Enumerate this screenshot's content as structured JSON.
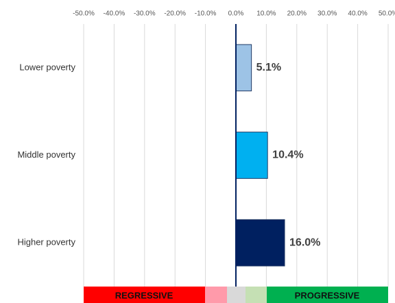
{
  "chart_data": {
    "type": "bar",
    "orientation": "horizontal",
    "categories": [
      "Lower poverty",
      "Middle poverty",
      "Higher poverty"
    ],
    "values": [
      5.1,
      10.4,
      16.0
    ],
    "value_labels": [
      "5.1%",
      "10.4%",
      "16.0%"
    ],
    "colors": [
      "#9dc3e6",
      "#00b0f0",
      "#002060"
    ],
    "xlim": [
      -50,
      50
    ],
    "xticks": [
      {
        "value": -50,
        "label": "-50.0%"
      },
      {
        "value": -40,
        "label": "-40.0%"
      },
      {
        "value": -30,
        "label": "-30.0%"
      },
      {
        "value": -20,
        "label": "-20.0%"
      },
      {
        "value": -10,
        "label": "-10.0%"
      },
      {
        "value": 0,
        "label": "0.0%"
      },
      {
        "value": 10,
        "label": "10.0%"
      },
      {
        "value": 20,
        "label": "20.0%"
      },
      {
        "value": 30,
        "label": "30.0%"
      },
      {
        "value": 40,
        "label": "40.0%"
      },
      {
        "value": 50,
        "label": "50.0%"
      }
    ],
    "grid": true,
    "band_labels": [
      "REGRESSIVE",
      "PROGRESSIVE"
    ]
  }
}
